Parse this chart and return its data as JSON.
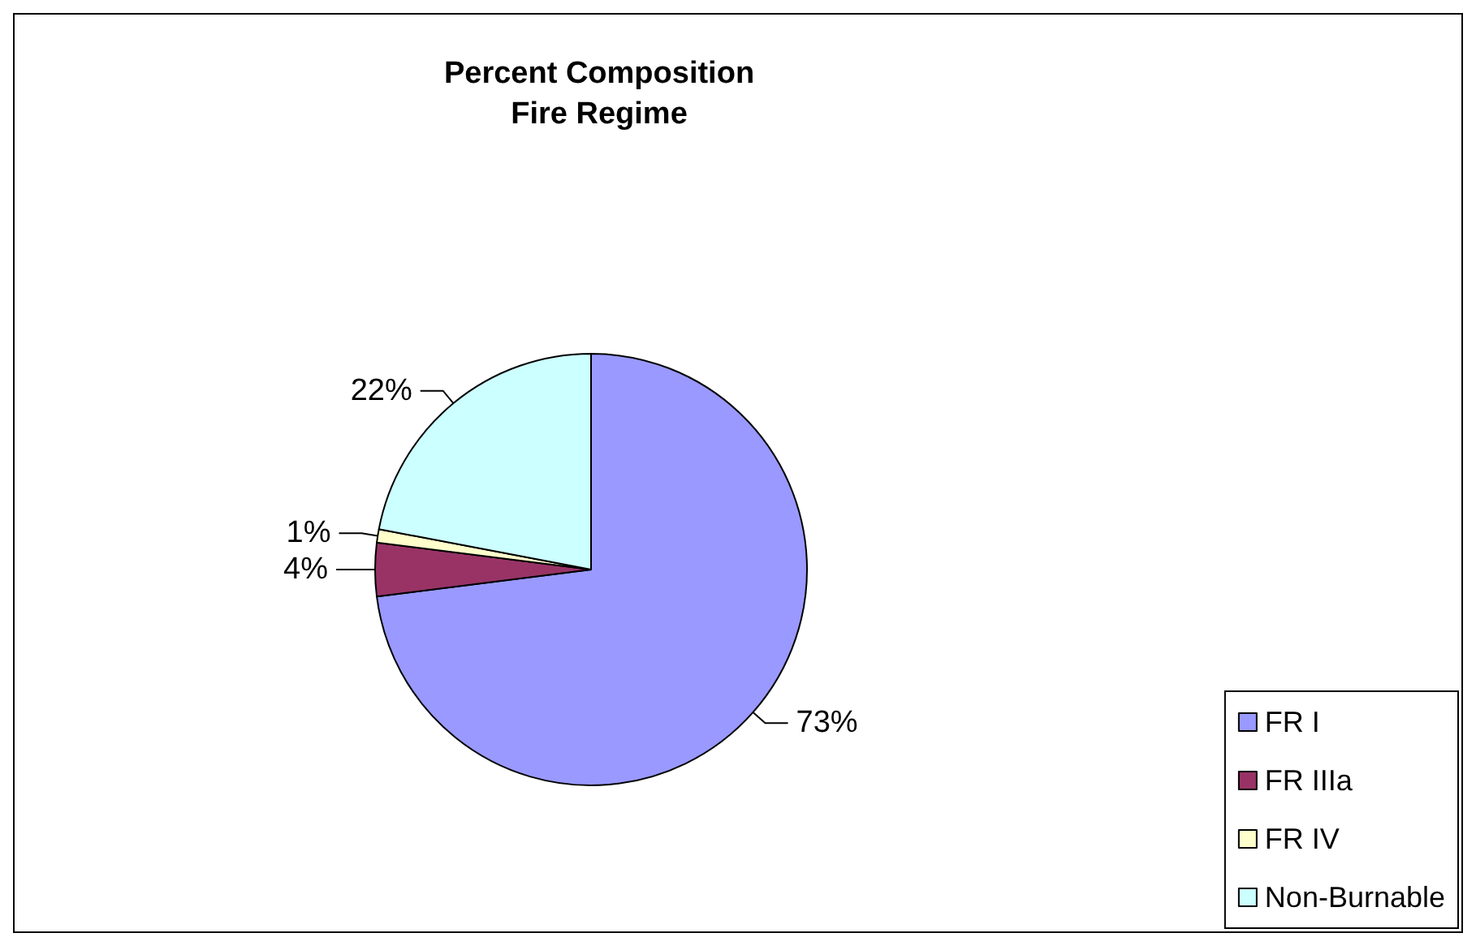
{
  "chart_data": {
    "type": "pie",
    "title": "Percent Composition",
    "subtitle": "Fire Regime",
    "categories": [
      "FR I",
      "FR IIIa",
      "FR IV",
      "Non-Burnable"
    ],
    "values": [
      73,
      4,
      1,
      22
    ],
    "value_labels": [
      "73%",
      "4%",
      "1%",
      "22%"
    ],
    "colors": [
      "#9999ff",
      "#993366",
      "#ffffcc",
      "#ccffff"
    ],
    "legend": "bottom right"
  }
}
